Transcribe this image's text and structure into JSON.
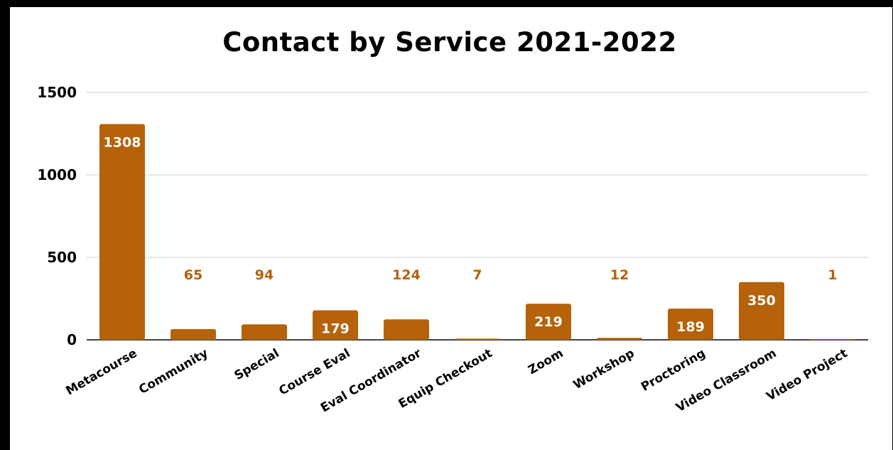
{
  "chart_data": {
    "type": "bar",
    "title": "Contact by Service 2021-2022",
    "xlabel": "",
    "ylabel": "",
    "categories": [
      "Metacourse",
      "Community",
      "Special",
      "Course Eval",
      "Eval Coordinator",
      "Equip Checkout",
      "Zoom",
      "Workshop",
      "Proctoring",
      "Video Classroom",
      "Video Project"
    ],
    "values": [
      1308,
      65,
      94,
      179,
      124,
      7,
      219,
      12,
      189,
      350,
      1
    ],
    "ylim": [
      0,
      1500
    ],
    "yticks": [
      0,
      500,
      1000,
      1500
    ],
    "grid": true,
    "legend": "none",
    "bar_color": "#b5620a",
    "label_inside_color": "#ffffff",
    "label_outside_color": "#b5620a",
    "frame_color": "#000000"
  }
}
